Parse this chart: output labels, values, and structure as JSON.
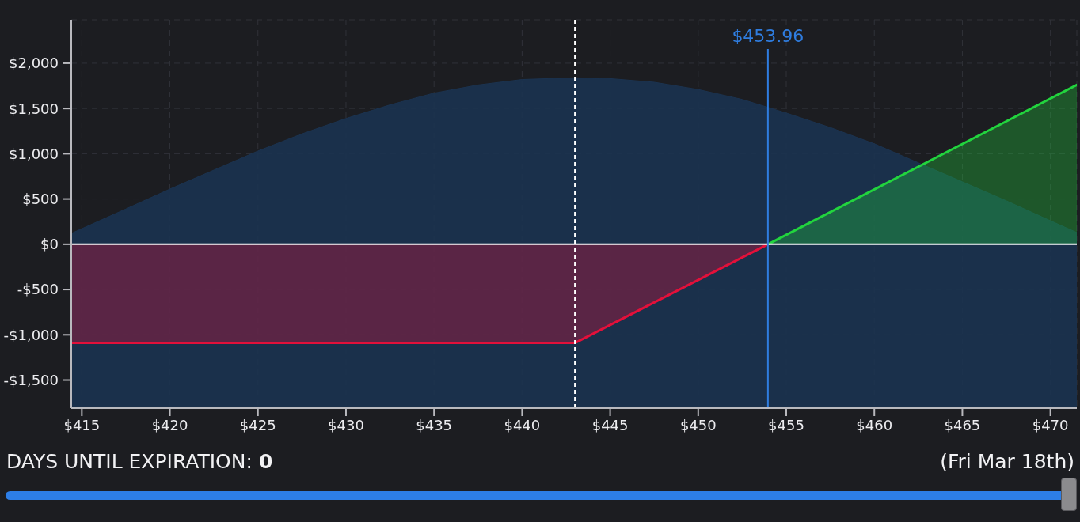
{
  "chart_data": {
    "type": "area",
    "xlim": [
      414.4,
      471.5
    ],
    "xticks": [
      {
        "value": 415,
        "label": "$415"
      },
      {
        "value": 420,
        "label": "$420"
      },
      {
        "value": 425,
        "label": "$425"
      },
      {
        "value": 430,
        "label": "$430"
      },
      {
        "value": 435,
        "label": "$435"
      },
      {
        "value": 440,
        "label": "$440"
      },
      {
        "value": 445,
        "label": "$445"
      },
      {
        "value": 450,
        "label": "$450"
      },
      {
        "value": 455,
        "label": "$455"
      },
      {
        "value": 460,
        "label": "$460"
      },
      {
        "value": 465,
        "label": "$465"
      },
      {
        "value": 470,
        "label": "$470"
      }
    ],
    "ylim": [
      -1810,
      2480
    ],
    "yticks": [
      {
        "value": -1500,
        "label": "-$1,500"
      },
      {
        "value": -1000,
        "label": "-$1,000"
      },
      {
        "value": -500,
        "label": "-$500"
      },
      {
        "value": 0,
        "label": "$0"
      },
      {
        "value": 500,
        "label": "$500"
      },
      {
        "value": 1000,
        "label": "$1,000"
      },
      {
        "value": 1500,
        "label": "$1,500"
      },
      {
        "value": 2000,
        "label": "$2,000"
      }
    ],
    "grid": true,
    "series": [
      {
        "color": "#1b3350",
        "x": [
          414.4,
          417.5,
          420,
          422.5,
          425,
          427.5,
          430,
          432.5,
          435,
          437.5,
          440,
          443,
          445,
          447.5,
          450,
          452.5,
          455,
          457.5,
          460,
          462.5,
          465,
          467.5,
          470,
          471.5
        ],
        "values": [
          120,
          390,
          610,
          820,
          1030,
          1220,
          1390,
          1540,
          1670,
          1760,
          1820,
          1840,
          1830,
          1790,
          1710,
          1600,
          1450,
          1290,
          1110,
          900,
          690,
          480,
          260,
          130
        ]
      },
      {
        "color": "#e3103a",
        "x": [
          414.4,
          443,
          453.96
        ],
        "values": [
          -1090,
          -1090,
          0
        ]
      },
      {
        "color": "#22d43e",
        "x": [
          453.96,
          471.5
        ],
        "values": [
          0,
          1760
        ]
      }
    ],
    "bands": [
      {
        "axis": "y",
        "from": -1810,
        "to": 0,
        "color": "#1b3350"
      }
    ],
    "ref_lines": [
      {
        "axis": "x",
        "value": 443,
        "color": "#ffffff",
        "line_style": "dashed"
      },
      {
        "axis": "y",
        "value": 0,
        "color": "#ffffff"
      },
      {
        "axis": "x",
        "value": 453.96,
        "label": "$453.96",
        "color": "#2f7de0"
      }
    ],
    "annotations": [
      "DAYS UNTIL EXPIRATION: 0",
      "(Fri Mar 18th)"
    ]
  }
}
